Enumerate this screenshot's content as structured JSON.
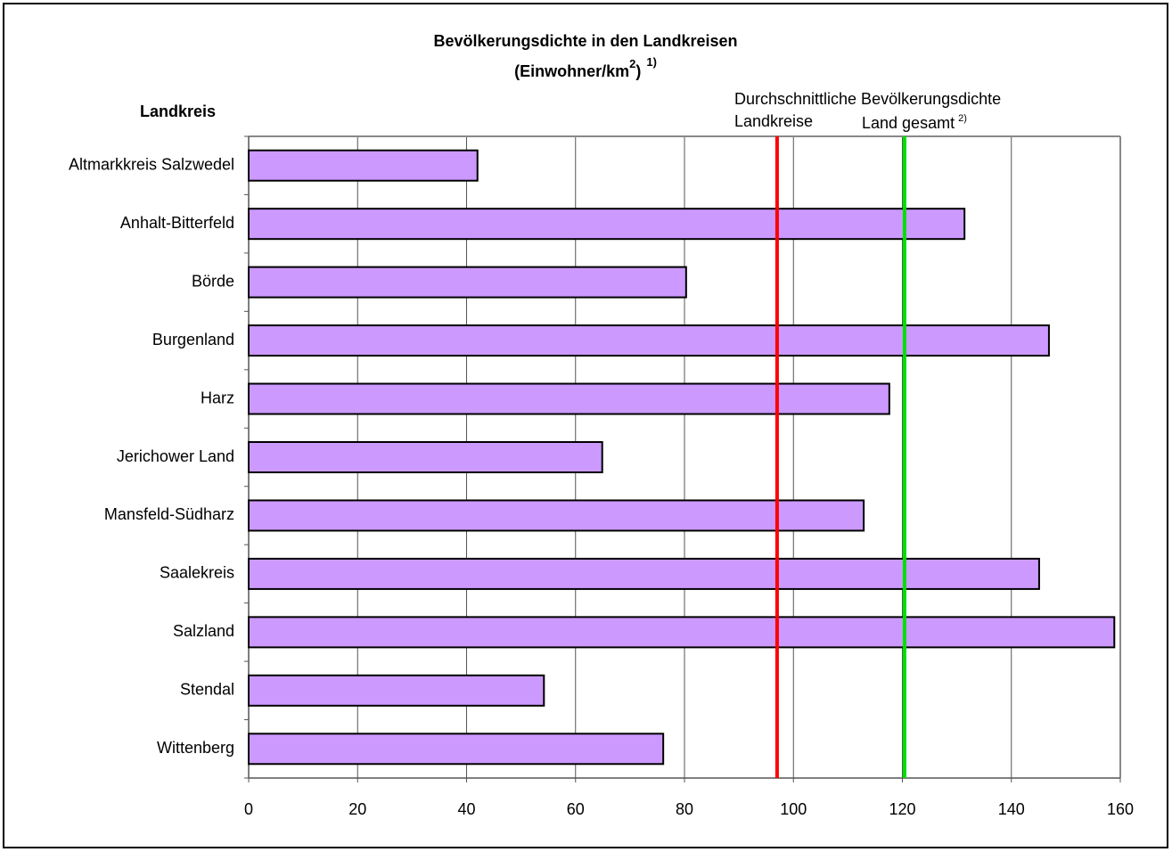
{
  "chart_data": {
    "type": "bar",
    "orientation": "horizontal",
    "title": "Bevölkerungsdichte in den Landkreisen",
    "subtitle": {
      "text": "(Einwohner/km",
      "sup": "2",
      "close": ")",
      "footnote": "1)"
    },
    "y_label": "Landkreis",
    "categories": [
      "Altmarkkreis Salzwedel",
      "Anhalt-Bitterfeld",
      "Börde",
      "Burgenland",
      "Harz",
      "Jerichower Land",
      "Mansfeld-Südharz",
      "Saalekreis",
      "Salzland",
      "Stendal",
      "Wittenberg"
    ],
    "values": [
      42,
      131.4,
      80.3,
      146.9,
      117.6,
      64.9,
      112.9,
      145.1,
      158.9,
      54.2,
      76.1
    ],
    "color": "#cc99ff",
    "xlim": [
      0,
      160
    ],
    "xticks": [
      0,
      20,
      40,
      60,
      80,
      100,
      120,
      140,
      160
    ],
    "grid": true,
    "reference_heading": "Durchschnittliche Bevölkerungsdichte",
    "reference_lines": [
      {
        "label": "Landkreise",
        "value": 97,
        "color": "#ff0000"
      },
      {
        "label": "Land gesamt",
        "footnote": "2)",
        "value": 120.4,
        "color": "#00e000"
      }
    ]
  }
}
